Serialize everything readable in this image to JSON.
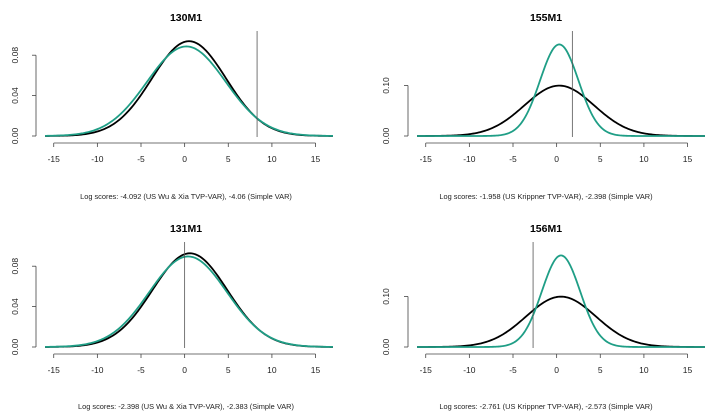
{
  "colors": {
    "simple_var": "#000000",
    "tvp_var": "#1f9e86",
    "axis": "#444444"
  },
  "chart_data": [
    {
      "type": "line",
      "title": "130M1",
      "caption": "Log scores: -4.092 (US Wu & Xia TVP-VAR), -4.06 (Simple VAR)",
      "xlim": [
        -16,
        17
      ],
      "ylim": [
        0,
        0.1
      ],
      "x_ticks": [
        -15,
        -10,
        -5,
        0,
        5,
        10,
        15
      ],
      "y_ticks": [
        0.0,
        0.04,
        0.08
      ],
      "y_tick_labels": [
        "0.00",
        "0.04",
        "0.08"
      ],
      "realized_value": 8.3,
      "series": [
        {
          "color": "#000000",
          "mean": 0.5,
          "sd": 4.25
        },
        {
          "color": "#1f9e86",
          "mean": 0.2,
          "sd": 4.5
        }
      ]
    },
    {
      "type": "line",
      "title": "155M1",
      "caption": "Log scores: -1.958 (US Krippner TVP-VAR), -2.398 (Simple VAR)",
      "xlim": [
        -16,
        17
      ],
      "ylim": [
        0,
        0.2
      ],
      "x_ticks": [
        -15,
        -10,
        -5,
        0,
        5,
        10,
        15
      ],
      "y_ticks": [
        0.0,
        0.1
      ],
      "y_tick_labels": [
        "0.00",
        "0.10"
      ],
      "realized_value": 1.8,
      "series": [
        {
          "color": "#000000",
          "mean": 0.3,
          "sd": 4.0
        },
        {
          "color": "#1f9e86",
          "mean": 0.3,
          "sd": 2.2
        }
      ]
    },
    {
      "type": "line",
      "title": "131M1",
      "caption": "Log scores: -2.398 (US Wu & Xia TVP-VAR), -2.383 (Simple VAR)",
      "xlim": [
        -16,
        17
      ],
      "ylim": [
        0,
        0.1
      ],
      "x_ticks": [
        -15,
        -10,
        -5,
        0,
        5,
        10,
        15
      ],
      "y_ticks": [
        0.0,
        0.04,
        0.08
      ],
      "y_tick_labels": [
        "0.00",
        "0.04",
        "0.08"
      ],
      "realized_value": 0.0,
      "series": [
        {
          "color": "#000000",
          "mean": 0.6,
          "sd": 4.3
        },
        {
          "color": "#1f9e86",
          "mean": 0.4,
          "sd": 4.45
        }
      ]
    },
    {
      "type": "line",
      "title": "156M1",
      "caption": "Log scores: -2.761 (US Krippner TVP-VAR), -2.573 (Simple VAR)",
      "xlim": [
        -16,
        17
      ],
      "ylim": [
        0,
        0.2
      ],
      "x_ticks": [
        -15,
        -10,
        -5,
        0,
        5,
        10,
        15
      ],
      "y_ticks": [
        0.0,
        0.1
      ],
      "y_tick_labels": [
        "0.00",
        "0.10"
      ],
      "realized_value": -2.7,
      "series": [
        {
          "color": "#000000",
          "mean": 0.5,
          "sd": 4.0
        },
        {
          "color": "#1f9e86",
          "mean": 0.5,
          "sd": 2.2
        }
      ]
    }
  ]
}
